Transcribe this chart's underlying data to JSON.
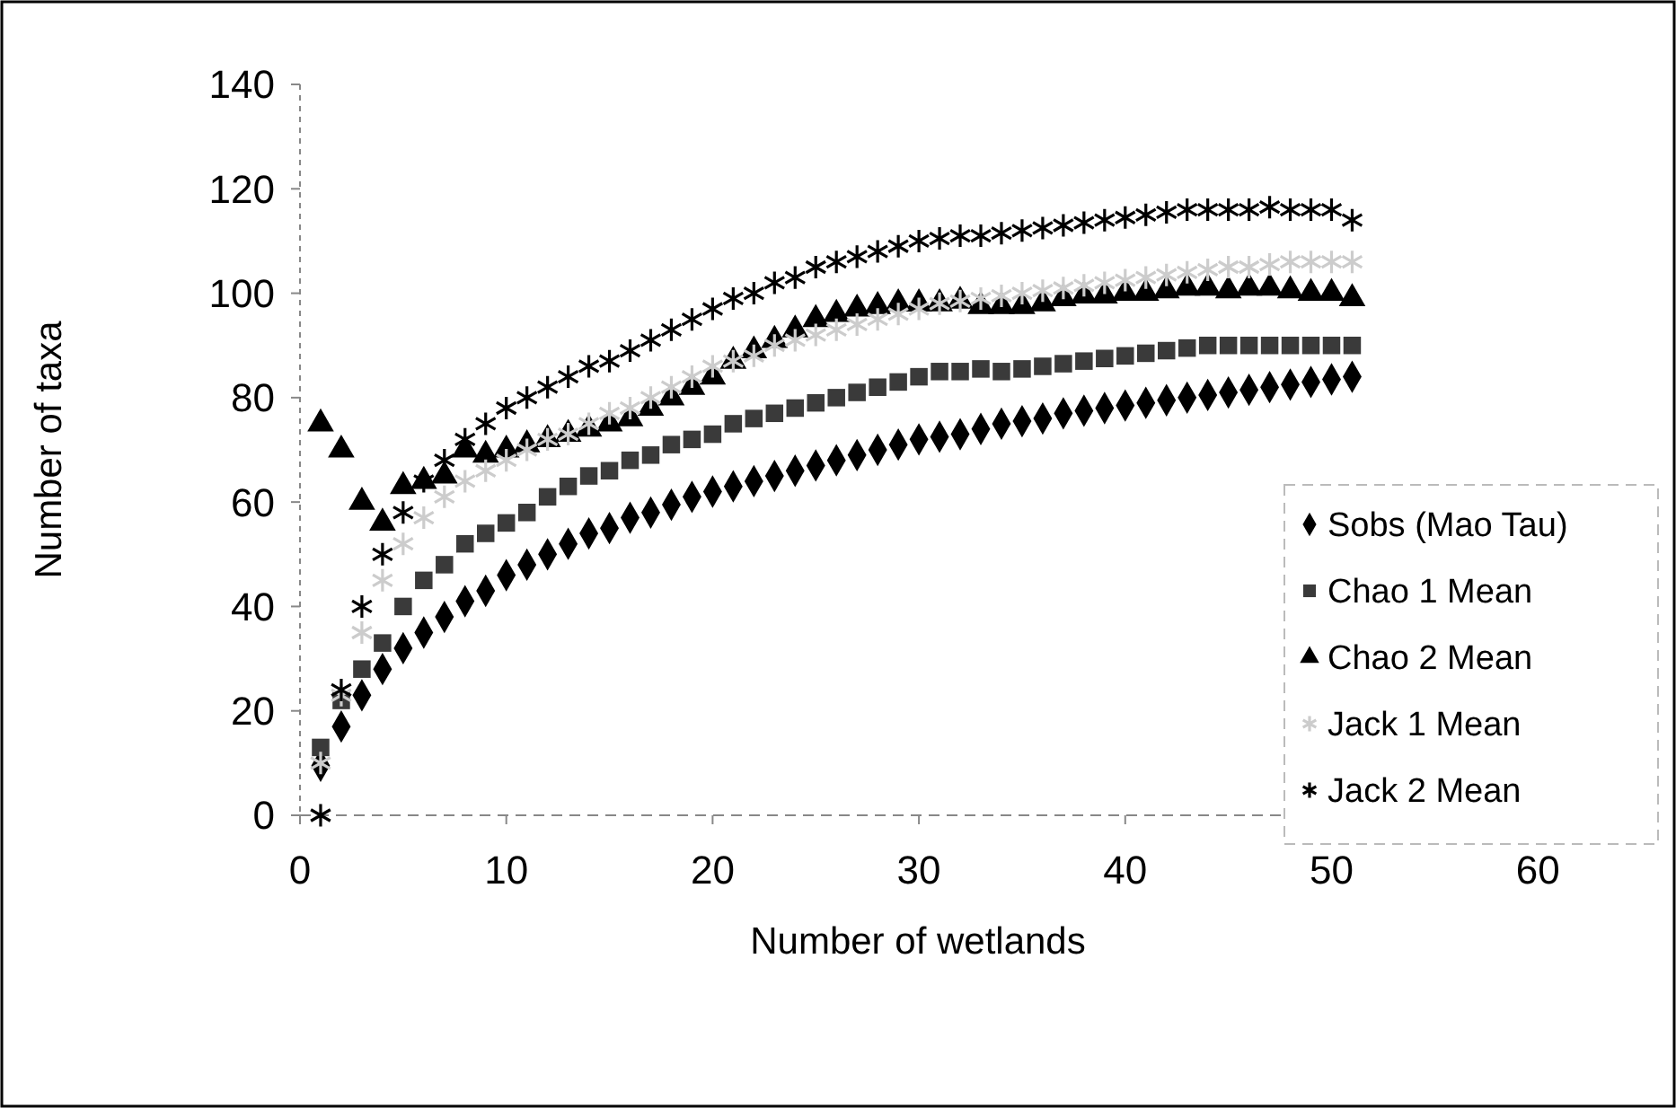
{
  "chart_data": {
    "type": "scatter",
    "xlabel": "Number of wetlands",
    "ylabel": "Number of taxa",
    "x": [
      1,
      2,
      3,
      4,
      5,
      6,
      7,
      8,
      9,
      10,
      11,
      12,
      13,
      14,
      15,
      16,
      17,
      18,
      19,
      20,
      21,
      22,
      23,
      24,
      25,
      26,
      27,
      28,
      29,
      30,
      31,
      32,
      33,
      34,
      35,
      36,
      37,
      38,
      39,
      40,
      41,
      42,
      43,
      44,
      45,
      46,
      47,
      48,
      49,
      50,
      51
    ],
    "xlim": [
      0,
      66
    ],
    "xticks": [
      0,
      10,
      20,
      30,
      40,
      50,
      60
    ],
    "ylim": [
      0,
      140
    ],
    "yticks": [
      0,
      20,
      40,
      60,
      80,
      100,
      120,
      140
    ],
    "grid": false,
    "legend": "right",
    "series": [
      {
        "name": "Sobs (Mao Tau)",
        "color": "#000000",
        "marker": "diamond",
        "values": [
          9.5,
          17,
          23,
          28,
          32,
          35,
          38,
          41,
          43,
          46,
          48,
          50,
          52,
          54,
          55,
          57,
          58,
          59.5,
          61,
          62,
          63,
          64,
          65,
          66,
          67,
          68,
          69,
          70,
          71,
          72,
          72.5,
          73,
          74,
          75,
          75.5,
          76,
          77,
          77.5,
          78,
          78.5,
          79,
          79.5,
          80,
          80.5,
          81,
          81.5,
          82,
          82.5,
          83,
          83.5,
          84
        ]
      },
      {
        "name": "Chao 1 Mean",
        "color": "#3a3a3a",
        "marker": "square",
        "values": [
          13,
          22,
          28,
          33,
          40,
          45,
          48,
          52,
          54,
          56,
          58,
          61,
          63,
          65,
          66,
          68,
          69,
          71,
          72,
          73,
          75,
          76,
          77,
          78,
          79,
          80,
          81,
          82,
          83,
          84,
          85,
          85,
          85.5,
          85,
          85.5,
          86,
          86.5,
          87,
          87.5,
          88,
          88.5,
          89,
          89.5,
          90,
          90,
          90,
          90,
          90,
          90,
          90,
          90
        ]
      },
      {
        "name": "Chao 2 Mean",
        "color": "#000000",
        "marker": "triangle",
        "values": [
          75,
          70,
          60,
          56,
          63,
          64,
          65,
          70,
          69,
          70,
          71,
          72,
          73,
          74,
          75,
          76,
          78,
          80,
          82,
          84,
          87,
          89,
          91,
          93,
          95,
          96,
          97,
          97.5,
          98,
          98,
          98,
          98.5,
          97.5,
          97.5,
          97.5,
          98,
          99,
          99.5,
          99.5,
          100,
          100,
          100.5,
          101,
          101,
          100.5,
          101,
          101,
          100.5,
          100,
          100,
          99
        ]
      },
      {
        "name": "Jack 1 Mean",
        "color": "#cccccc",
        "marker": "cross",
        "values": [
          10,
          23,
          35,
          45,
          52,
          57,
          61,
          64,
          66,
          68,
          70,
          72,
          73,
          75,
          77,
          78,
          80,
          82,
          84,
          86,
          87,
          88,
          90,
          91,
          92,
          93,
          94,
          95,
          96,
          97,
          98,
          98.5,
          99,
          99.5,
          100,
          100.5,
          101,
          101.5,
          102,
          102.5,
          103,
          103.5,
          104,
          104.5,
          105,
          105,
          105.5,
          106,
          106,
          106,
          106
        ]
      },
      {
        "name": "Jack 2 Mean",
        "color": "#000000",
        "marker": "cross",
        "values": [
          0,
          24,
          40,
          50,
          58,
          64,
          68,
          72,
          75,
          78,
          80,
          82,
          84,
          86,
          87,
          89,
          91,
          93,
          95,
          97,
          99,
          100,
          102,
          103,
          105,
          106,
          107,
          108,
          109,
          110,
          110.5,
          111,
          111,
          111.5,
          112,
          112.5,
          113,
          113.5,
          114,
          114.5,
          115,
          115.5,
          116,
          116,
          116,
          116,
          116.5,
          116,
          116,
          116,
          114
        ]
      }
    ]
  }
}
